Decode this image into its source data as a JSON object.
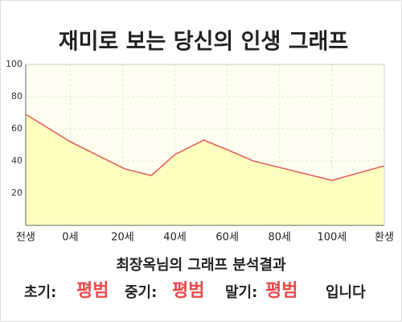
{
  "chart_data": {
    "type": "area",
    "title": "재미로 보는 당신의 인생 그래프",
    "x": [
      -17,
      0,
      21,
      31,
      40,
      51,
      60,
      70,
      80,
      100,
      120
    ],
    "values": [
      69,
      52,
      35,
      31,
      44,
      53,
      47,
      40,
      36,
      28,
      37
    ],
    "color": "#e06060",
    "fill": "#ffffbf",
    "xlim": [
      -17,
      120
    ],
    "xticks": [
      {
        "value": -17,
        "label": "전생"
      },
      {
        "value": 0,
        "label": "0세"
      },
      {
        "value": 20,
        "label": "20세"
      },
      {
        "value": 40,
        "label": "40세"
      },
      {
        "value": 60,
        "label": "60세"
      },
      {
        "value": 80,
        "label": "80세"
      },
      {
        "value": 100,
        "label": "100세"
      },
      {
        "value": 120,
        "label": "환생"
      }
    ],
    "ylim": [
      0,
      100
    ],
    "yticks": [
      20,
      40,
      60,
      80,
      100
    ],
    "grid": true,
    "summary": {
      "heading": "최장옥님의 그래프 분석결과",
      "items": [
        {
          "label": "초기:",
          "value": "평범"
        },
        {
          "label": "중기:",
          "value": "평범"
        },
        {
          "label": "말기:",
          "value": "평범"
        }
      ],
      "suffix": "입니다"
    }
  }
}
